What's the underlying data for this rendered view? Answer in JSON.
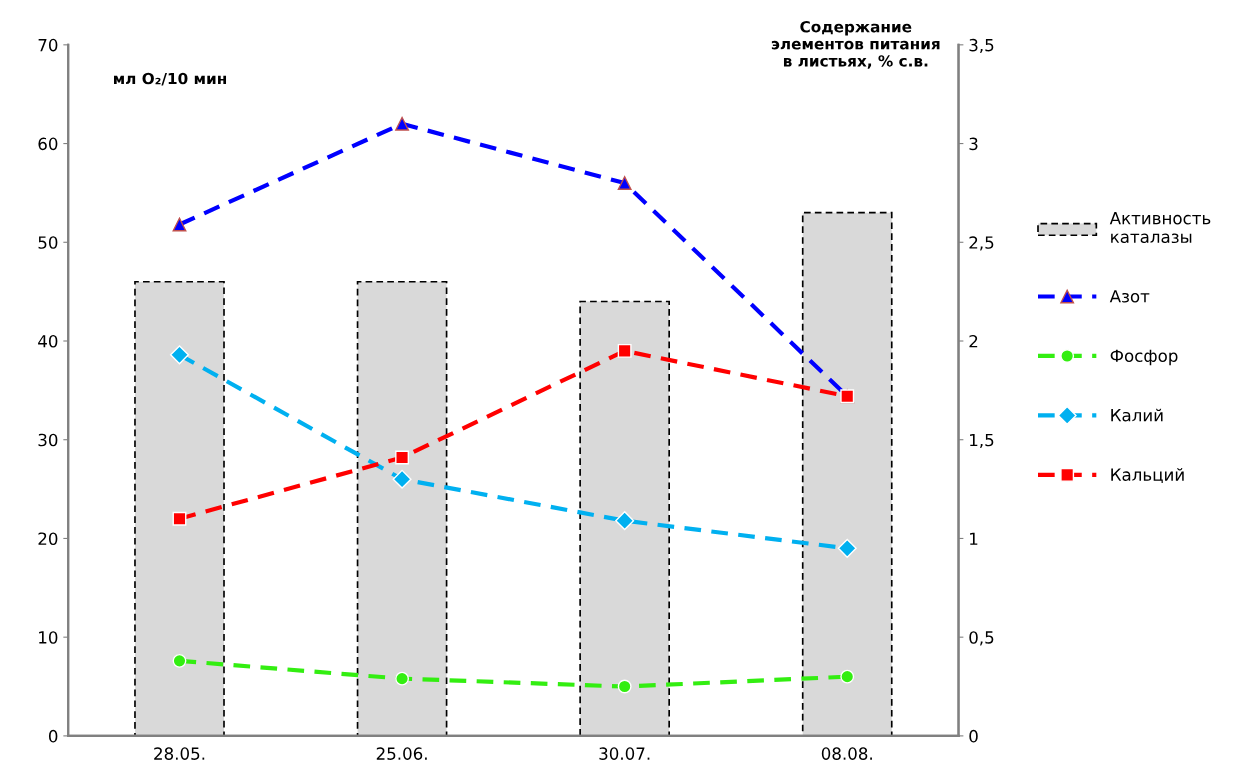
{
  "chart_data": {
    "type": "bar",
    "categories": [
      "28.05.",
      "25.06.",
      "30.07.",
      "08.08."
    ],
    "ylabel": "мл O₂/10 мин",
    "y2label": "Содержание\nэлементов питания\nв листьях, % с.в.",
    "ylim": [
      0,
      70
    ],
    "yticks": [
      0,
      10,
      20,
      30,
      40,
      50,
      60,
      70
    ],
    "y2lim": [
      0,
      3.5
    ],
    "y2ticks": [
      0,
      {
        "value": 0.5,
        "label": "0,5"
      },
      1,
      {
        "value": 1.5,
        "label": "1,5"
      },
      2,
      {
        "value": 2.5,
        "label": "2,5"
      },
      3,
      {
        "value": 3.5,
        "label": "3,5"
      }
    ],
    "grid": false,
    "legend": "right",
    "line_style": "dashed",
    "series": [
      {
        "name": "Активность\nкаталазы",
        "color": "#d9d9d9",
        "values": [
          46,
          46,
          44,
          53
        ]
      },
      {
        "name": "Азот",
        "type": "line",
        "axis": "y2",
        "color": "#0000ff",
        "marker": "triangle",
        "values": [
          2.59,
          3.1,
          2.8,
          1.72
        ]
      },
      {
        "name": "Фосфор",
        "type": "line",
        "axis": "y2",
        "color": "#33ee11",
        "marker": "circle",
        "values": [
          0.38,
          0.29,
          0.25,
          0.3
        ]
      },
      {
        "name": "Калий",
        "type": "line",
        "axis": "y2",
        "color": "#00b0f0",
        "marker": "diamond",
        "values": [
          1.93,
          1.3,
          1.09,
          0.95
        ]
      },
      {
        "name": "Кальций",
        "type": "line",
        "axis": "y2",
        "color": "#ff0000",
        "marker": "square",
        "values": [
          1.1,
          1.41,
          1.95,
          1.72
        ]
      }
    ]
  }
}
